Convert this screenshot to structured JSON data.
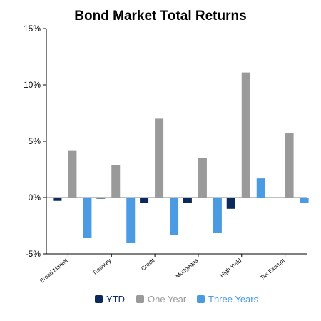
{
  "chart_data": {
    "type": "bar",
    "title": "Bond Market Total Returns",
    "xlabel": "",
    "ylabel": "",
    "ylim": [
      -5,
      15
    ],
    "yticks": [
      "15%",
      "10%",
      "5%",
      "0%",
      "-5%"
    ],
    "ytick_values": [
      15,
      10,
      5,
      0,
      -5
    ],
    "categories": [
      "Broad Market",
      "Treasury",
      "Credit",
      "Mortgages",
      "High Yield",
      "Tax Exempt"
    ],
    "series": [
      {
        "name": "YTD",
        "color": "#0b2a5b",
        "values": [
          -0.3,
          -0.1,
          -0.5,
          -0.5,
          -1.0,
          0.0
        ]
      },
      {
        "name": "One Year",
        "color": "#9a9a9a",
        "values": [
          4.2,
          2.9,
          7.0,
          3.5,
          11.1,
          5.7
        ]
      },
      {
        "name": "Three Years",
        "color": "#4a9be3",
        "values": [
          -3.6,
          -4.0,
          -3.3,
          -3.1,
          1.7,
          -0.5
        ]
      }
    ],
    "grid": false,
    "legend_position": "bottom"
  }
}
